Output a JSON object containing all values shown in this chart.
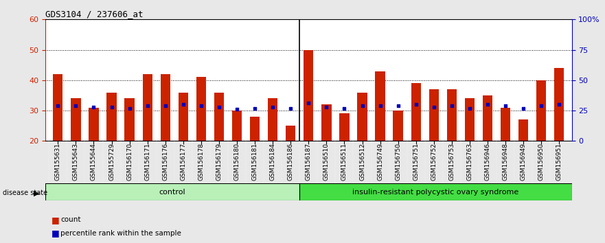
{
  "title": "GDS3104 / 237606_at",
  "samples": [
    "GSM155631",
    "GSM155643",
    "GSM155644",
    "GSM155729",
    "GSM156170",
    "GSM156171",
    "GSM156176",
    "GSM156177",
    "GSM156178",
    "GSM156179",
    "GSM156180",
    "GSM156181",
    "GSM156184",
    "GSM156186",
    "GSM156187",
    "GSM156510",
    "GSM156511",
    "GSM156512",
    "GSM156749",
    "GSM156750",
    "GSM156751",
    "GSM156752",
    "GSM156753",
    "GSM156763",
    "GSM156946",
    "GSM156948",
    "GSM156949",
    "GSM156950",
    "GSM156951"
  ],
  "counts": [
    42,
    34,
    31,
    36,
    34,
    42,
    42,
    36,
    41,
    36,
    30,
    28,
    34,
    25,
    50,
    32,
    29,
    36,
    43,
    30,
    39,
    37,
    37,
    34,
    35,
    31,
    27,
    40,
    44
  ],
  "percentile_ranks": [
    29,
    29,
    28,
    28,
    27,
    29,
    29,
    30,
    29,
    28,
    26,
    27,
    28,
    27,
    31,
    28,
    27,
    29,
    29,
    29,
    30,
    28,
    29,
    27,
    30,
    29,
    27,
    29,
    30
  ],
  "group_labels": [
    "control",
    "insulin-resistant polycystic ovary syndrome"
  ],
  "group_split": 14,
  "ymin": 20,
  "ymax": 60,
  "yticks_left": [
    20,
    30,
    40,
    50,
    60
  ],
  "yticks_right": [
    0,
    25,
    50,
    75,
    100
  ],
  "right_yticklabels": [
    "0",
    "25",
    "50",
    "75",
    "100%"
  ],
  "bar_color": "#cc2200",
  "dot_color": "#0000bb",
  "bar_width": 0.55,
  "bg_color": "#e8e8e8",
  "plot_bg": "#ffffff",
  "left_axis_color": "#cc2200",
  "right_axis_color": "#0000bb",
  "legend_count_label": "count",
  "legend_pct_label": "percentile rank within the sample",
  "ctrl_color": "#b8f0b8",
  "disease_color": "#44dd44"
}
